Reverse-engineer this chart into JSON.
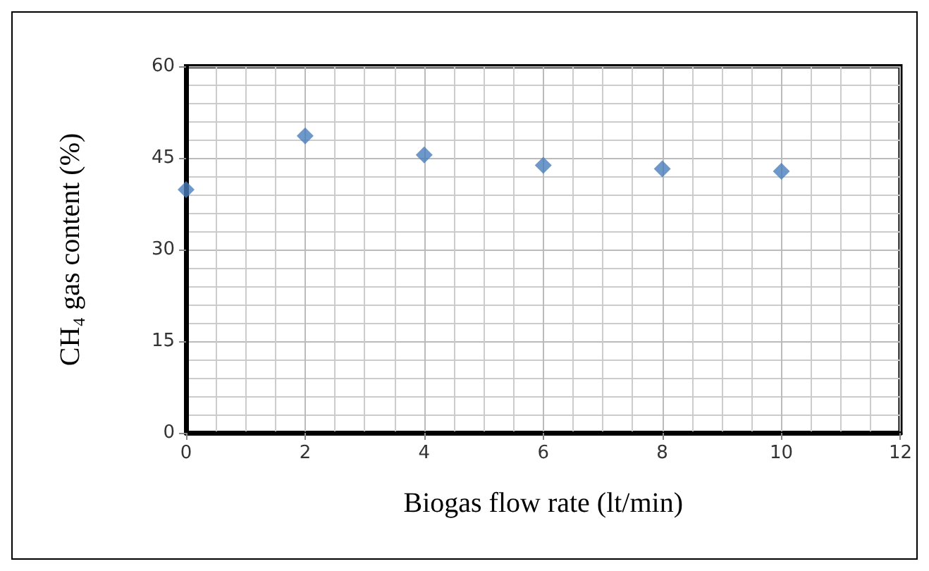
{
  "chart_data": {
    "type": "scatter",
    "xlabel": "Biogas flow rate (lt/min)",
    "ylabel": "CH₄ gas content (%)",
    "x": [
      0,
      2,
      4,
      6,
      8,
      10
    ],
    "series": [
      {
        "color": "#4a7ebb",
        "values": [
          39.8,
          48.6,
          45.5,
          43.8,
          43.2,
          42.8
        ]
      }
    ],
    "xlim": [
      0,
      12
    ],
    "xticks": [
      0,
      2,
      4,
      6,
      8,
      10,
      12
    ],
    "ylim": [
      0,
      60
    ],
    "yticks": [
      0,
      15,
      30,
      45,
      60
    ],
    "grid": true,
    "marker": "diamond"
  }
}
